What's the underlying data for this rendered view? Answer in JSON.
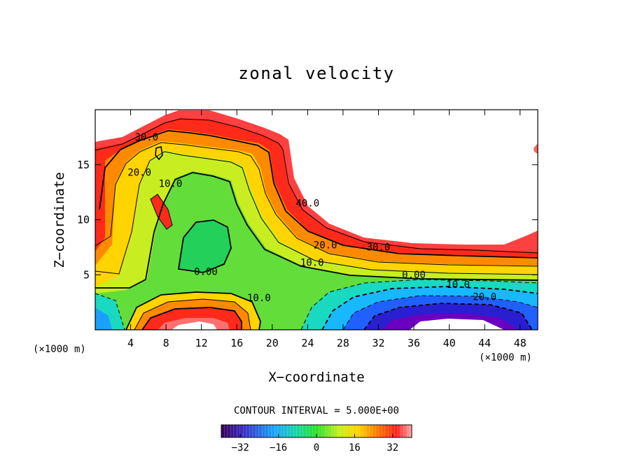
{
  "chart_data": {
    "type": "heatmap",
    "title": "zonal velocity",
    "xlabel": "X−coordinate",
    "ylabel": "Z−coordinate",
    "x_unit_label": "(×1000 m)",
    "z_unit_label": "(×1000 m)",
    "xlim": [
      0,
      50
    ],
    "ylim": [
      0,
      20
    ],
    "xticks": [
      4,
      8,
      12,
      16,
      20,
      24,
      28,
      32,
      36,
      40,
      44,
      48
    ],
    "yticks": [
      5,
      10,
      15
    ],
    "contour_interval_text": "CONTOUR INTERVAL = 5.000E+00",
    "contour_interval": 5.0,
    "contour_labels": [
      {
        "text": "30.0",
        "x": 5.8,
        "z": 17.2
      },
      {
        "text": "20.0",
        "x": 5.0,
        "z": 14.0
      },
      {
        "text": "10.0",
        "x": 8.5,
        "z": 13.0
      },
      {
        "text": "40.0",
        "x": 24.0,
        "z": 11.2
      },
      {
        "text": "20.0",
        "x": 26.0,
        "z": 7.4
      },
      {
        "text": "30.0",
        "x": 32.0,
        "z": 7.2
      },
      {
        "text": "10.0",
        "x": 24.5,
        "z": 5.8
      },
      {
        "text": "0.00",
        "x": 12.5,
        "z": 5.0
      },
      {
        "text": "0.00",
        "x": 36.0,
        "z": 4.7
      },
      {
        "text": "10.0",
        "x": 41.0,
        "z": 3.8
      },
      {
        "text": "20.0",
        "x": 44.0,
        "z": 2.7
      },
      {
        "text": "10.0",
        "x": 18.5,
        "z": 2.6
      }
    ],
    "colorbar": {
      "min": -40,
      "max": 40,
      "ticks": [
        -32,
        -16,
        0,
        16,
        32
      ],
      "tick_labels": [
        "−32",
        "−16",
        "0",
        "16",
        "32"
      ]
    }
  }
}
